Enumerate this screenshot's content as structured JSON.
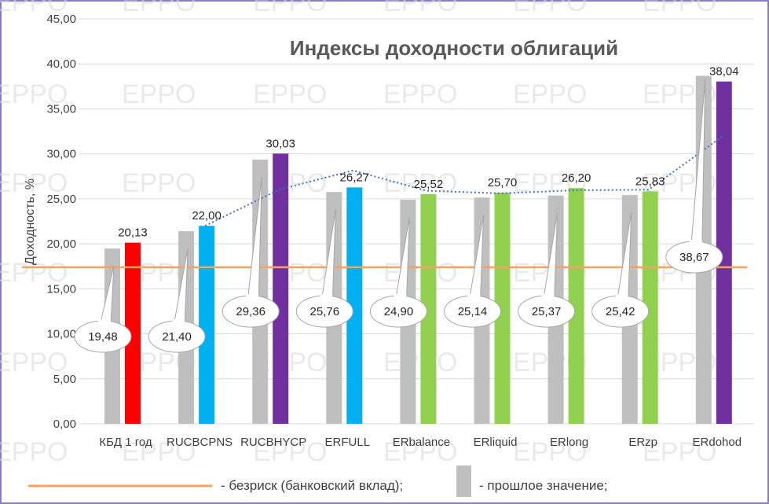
{
  "chart_data": {
    "type": "bar",
    "title": "Индексы доходности облигаций",
    "ylabel": "Доходность, %",
    "xlabel": "",
    "ylim": [
      0,
      45
    ],
    "yticks": [
      "0,00",
      "5,00",
      "10,00",
      "15,00",
      "20,00",
      "25,00",
      "30,00",
      "35,00",
      "40,00",
      "45,00"
    ],
    "categories": [
      "КБД 1 год",
      "RUCBCPNS",
      "RUCBHYCP",
      "ERFULL",
      "ERbalance",
      "ERliquid",
      "ERlong",
      "ERzp",
      "ERdohod"
    ],
    "series": [
      {
        "name": "прошлое значение",
        "values": [
          19.48,
          21.4,
          29.36,
          25.76,
          24.9,
          25.14,
          25.37,
          25.42,
          38.67
        ],
        "labels": [
          "19,48",
          "21,40",
          "29,36",
          "25,76",
          "24,90",
          "25,14",
          "25,37",
          "25,42",
          "38,67"
        ],
        "color": "#bfbfbf"
      },
      {
        "name": "",
        "values": [
          20.13,
          22.0,
          30.03,
          26.27,
          25.52,
          25.7,
          26.2,
          25.83,
          38.04
        ],
        "labels": [
          "20,13",
          "22,00",
          "30,03",
          "26,27",
          "25,52",
          "25,70",
          "26,20",
          "25,83",
          "38,04"
        ],
        "colors": [
          "#ff0000",
          "#00b0f0",
          "#7030a0",
          "#00b0f0",
          "#92d050",
          "#92d050",
          "#92d050",
          "#92d050",
          "#7030a0"
        ]
      }
    ],
    "reference_line": {
      "name": "безриск (банковский вклад)",
      "value": 17.4,
      "color": "#f4a460"
    },
    "trendline": {
      "style": "dotted",
      "color": "#4472c4"
    },
    "legend_position": "bottom",
    "watermark": "EPPO",
    "grid": true
  },
  "legend": {
    "riskfree_label": "- безриск (банковский вклад);",
    "prev_label": "- прошлое значение;"
  },
  "colors": {
    "grid": "#d9d9d9",
    "border": "#8a7cc9",
    "callout_border": "#a6a6a6"
  }
}
